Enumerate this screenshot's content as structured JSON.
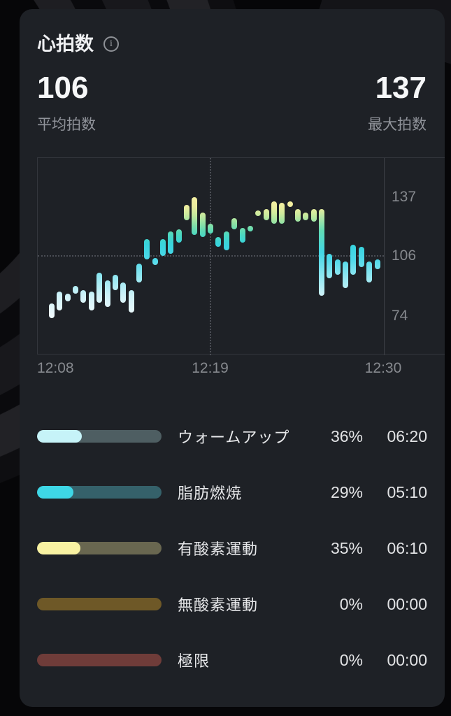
{
  "header": {
    "title": "心拍数",
    "info_glyph": "i"
  },
  "summary": {
    "average": {
      "value": "106",
      "label": "平均拍数"
    },
    "max": {
      "value": "137",
      "label": "最大拍数"
    }
  },
  "chart_data": {
    "type": "bar",
    "subtype": "min-max-range-columns",
    "title": "",
    "xlabel": "",
    "ylabel": "",
    "x_ticks": [
      "12:08",
      "12:19",
      "12:30"
    ],
    "y_ticks": [
      137,
      106,
      74
    ],
    "ylim": [
      58,
      160
    ],
    "grid": {
      "horizontal_dotted_at": 106,
      "vertical_dotted_at": "12:19",
      "right_axis_line_at": "12:30"
    },
    "bar_interval_seconds": 30,
    "bars_min_max": [
      [
        73,
        81
      ],
      [
        77,
        87
      ],
      [
        82,
        86
      ],
      [
        86,
        90
      ],
      [
        81,
        88
      ],
      [
        77,
        87
      ],
      [
        81,
        97
      ],
      [
        79,
        93
      ],
      [
        88,
        96
      ],
      [
        81,
        92
      ],
      [
        76,
        88
      ],
      [
        92,
        102
      ],
      [
        104,
        115
      ],
      [
        101,
        105
      ],
      [
        106,
        115
      ],
      [
        107,
        119
      ],
      [
        113,
        120
      ],
      [
        125,
        133
      ],
      [
        117,
        137
      ],
      [
        116,
        129
      ],
      [
        118,
        123
      ],
      [
        111,
        116
      ],
      [
        109,
        119
      ],
      [
        120,
        126
      ],
      [
        113,
        121
      ],
      [
        119,
        122
      ],
      [
        127,
        130
      ],
      [
        125,
        131
      ],
      [
        123,
        135
      ],
      [
        123,
        134
      ],
      [
        132,
        135
      ],
      [
        124,
        131
      ],
      [
        125,
        129
      ],
      [
        124,
        131
      ],
      [
        85,
        131
      ],
      [
        94,
        107
      ],
      [
        96,
        104
      ],
      [
        89,
        103
      ],
      [
        96,
        112
      ],
      [
        100,
        111
      ],
      [
        92,
        103
      ],
      [
        99,
        104
      ]
    ],
    "color_scale_stops": [
      [
        74,
        "#f0fafc"
      ],
      [
        85,
        "#cff2f8"
      ],
      [
        95,
        "#93e7f1"
      ],
      [
        104,
        "#4ed9e9"
      ],
      [
        112,
        "#36d3de"
      ],
      [
        118,
        "#4ed8bb"
      ],
      [
        123,
        "#8ee1a4"
      ],
      [
        128,
        "#cdea9d"
      ],
      [
        133,
        "#f3ee9f"
      ],
      [
        140,
        "#f7f2a6"
      ]
    ]
  },
  "zones": [
    {
      "label": "ウォームアップ",
      "percent": "36%",
      "time": "06:20",
      "fraction": 0.36,
      "fill_color": "#c6f3f8",
      "track_color": "#4e5e62"
    },
    {
      "label": "脂肪燃焼",
      "percent": "29%",
      "time": "05:10",
      "fraction": 0.29,
      "fill_color": "#3ed7e6",
      "track_color": "#35616a"
    },
    {
      "label": "有酸素運動",
      "percent": "35%",
      "time": "06:10",
      "fraction": 0.35,
      "fill_color": "#f8f2a2",
      "track_color": "#696750"
    },
    {
      "label": "無酸素運動",
      "percent": "0%",
      "time": "00:00",
      "fraction": 0,
      "fill_color": "#6e5827",
      "track_color": "#6e5827"
    },
    {
      "label": "極限",
      "percent": "0%",
      "time": "00:00",
      "fraction": 0,
      "fill_color": "#6f3c39",
      "track_color": "#6f3c39"
    }
  ],
  "colors": {
    "page_background": "#060608",
    "card_background": "#1e2126",
    "axis_text": "#86898e",
    "primary_text": "#f6f7f8",
    "secondary_text": "#90939a"
  }
}
